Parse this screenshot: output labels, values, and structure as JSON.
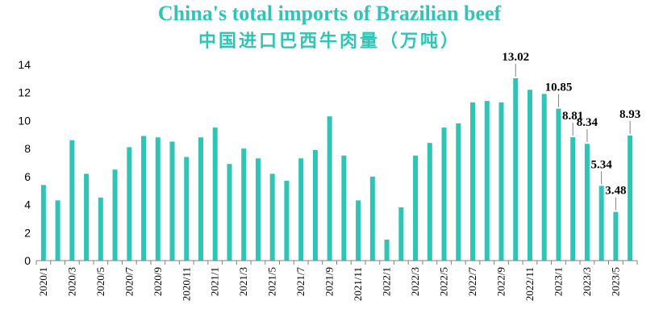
{
  "chart_data": {
    "type": "bar",
    "title": "China's total imports of Brazilian beef",
    "subtitle": "中国进口巴西牛肉量（万吨）",
    "xlabel": "",
    "ylabel": "",
    "ylim": [
      0,
      14
    ],
    "yticks": [
      0,
      2,
      4,
      6,
      8,
      10,
      12,
      14
    ],
    "colors": {
      "bar": "#2ec4b6",
      "title": "#2ec4b6",
      "axis": "#808080",
      "leader": "#808080"
    },
    "categories": [
      "2020/1",
      "2020/2",
      "2020/3",
      "2020/4",
      "2020/5",
      "2020/6",
      "2020/7",
      "2020/8",
      "2020/9",
      "2020/10",
      "2020/11",
      "2020/12",
      "2021/1",
      "2021/2",
      "2021/3",
      "2021/4",
      "2021/5",
      "2021/6",
      "2021/7",
      "2021/8",
      "2021/9",
      "2021/10",
      "2021/11",
      "2021/12",
      "2022/1",
      "2022/2",
      "2022/3",
      "2022/4",
      "2022/5",
      "2022/6",
      "2022/7",
      "2022/8",
      "2022/9",
      "2022/10",
      "2022/11",
      "2022/12",
      "2023/1",
      "2023/2",
      "2023/3",
      "2023/4",
      "2023/5",
      "2023/6"
    ],
    "xtick_labels": [
      "2020/1",
      "2020/3",
      "2020/5",
      "2020/7",
      "2020/9",
      "2020/11",
      "2021/1",
      "2021/3",
      "2021/5",
      "2021/7",
      "2021/9",
      "2021/11",
      "2022/1",
      "2022/3",
      "2022/5",
      "2022/7",
      "2022/9",
      "2022/11",
      "2023/1",
      "2023/3",
      "2023/5"
    ],
    "series": [
      {
        "values": [
          5.4,
          4.3,
          8.6,
          6.2,
          4.5,
          6.5,
          8.1,
          8.9,
          8.8,
          8.5,
          7.4,
          8.8,
          9.5,
          6.9,
          8.0,
          7.3,
          6.2,
          5.7,
          7.3,
          7.9,
          10.3,
          7.5,
          4.3,
          6.0,
          1.5,
          3.8,
          7.5,
          8.4,
          9.5,
          9.8,
          11.3,
          11.4,
          11.3,
          13.02,
          12.2,
          11.9,
          10.85,
          8.81,
          8.34,
          5.34,
          3.48,
          8.93
        ]
      }
    ],
    "data_labels": [
      {
        "index": 33,
        "text": "13.02"
      },
      {
        "index": 36,
        "text": "10.85"
      },
      {
        "index": 37,
        "text": "8.81"
      },
      {
        "index": 38,
        "text": "8.34"
      },
      {
        "index": 39,
        "text": "5.34"
      },
      {
        "index": 40,
        "text": "3.48"
      },
      {
        "index": 41,
        "text": "8.93"
      }
    ],
    "grid": false,
    "legend": "none"
  }
}
